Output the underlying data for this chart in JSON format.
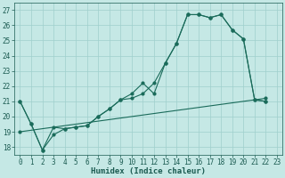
{
  "xlabel": "Humidex (Indice chaleur)",
  "bg_color": "#c5e8e5",
  "line_color": "#1a6b5a",
  "xlim": [
    -0.5,
    23.5
  ],
  "ylim": [
    17.5,
    27.5
  ],
  "yticks": [
    18,
    19,
    20,
    21,
    22,
    23,
    24,
    25,
    26,
    27
  ],
  "xticks": [
    0,
    1,
    2,
    3,
    4,
    5,
    6,
    7,
    8,
    9,
    10,
    11,
    12,
    13,
    14,
    15,
    16,
    17,
    18,
    19,
    20,
    21,
    22,
    23
  ],
  "line1_x": [
    0,
    1,
    2,
    3,
    4,
    5,
    6,
    7,
    8,
    9,
    10,
    11,
    12,
    13,
    14,
    15,
    16,
    17,
    18,
    19,
    20,
    21,
    22
  ],
  "line1_y": [
    21.0,
    19.5,
    17.8,
    19.3,
    19.2,
    19.3,
    19.4,
    20.0,
    20.5,
    21.1,
    21.5,
    22.2,
    21.5,
    23.5,
    24.8,
    26.7,
    26.7,
    26.5,
    26.7,
    25.7,
    25.1,
    21.1,
    21.0
  ],
  "line2_x": [
    0,
    1,
    2,
    3,
    4,
    5,
    6,
    7,
    8,
    9,
    10,
    11,
    12,
    13,
    14,
    15,
    16,
    17,
    18,
    19,
    20,
    21,
    22
  ],
  "line2_y": [
    21.0,
    19.5,
    17.8,
    18.8,
    19.2,
    19.3,
    19.4,
    20.0,
    20.5,
    21.1,
    21.2,
    21.5,
    22.2,
    23.5,
    24.8,
    26.7,
    26.7,
    26.5,
    26.7,
    25.7,
    25.1,
    21.1,
    21.0
  ],
  "line3_x": [
    0,
    22
  ],
  "line3_y": [
    19.0,
    21.2
  ],
  "grid_color": "#9fcfcc",
  "font_color": "#1a5a50",
  "xlabel_fontsize": 6.5,
  "tick_fontsize": 5.5,
  "lw": 0.8,
  "ms": 2.0
}
